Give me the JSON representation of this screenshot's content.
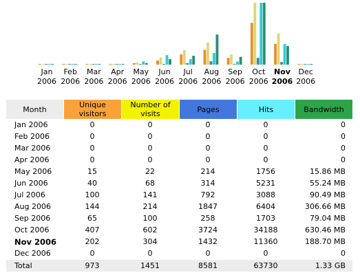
{
  "chart_data": {
    "type": "bar",
    "categories": [
      "Jan 2006",
      "Feb 2006",
      "Mar 2006",
      "Apr 2006",
      "May 2006",
      "Jun 2006",
      "Jul 2006",
      "Aug 2006",
      "Sep 2006",
      "Oct 2006",
      "Nov 2006",
      "Dec 2006"
    ],
    "x_labels": [
      {
        "month": "Jan",
        "year": "2006"
      },
      {
        "month": "Feb",
        "year": "2006"
      },
      {
        "month": "Mar",
        "year": "2006"
      },
      {
        "month": "Apr",
        "year": "2006"
      },
      {
        "month": "May",
        "year": "2006"
      },
      {
        "month": "Jun",
        "year": "2006"
      },
      {
        "month": "Jul",
        "year": "2006"
      },
      {
        "month": "Aug",
        "year": "2006"
      },
      {
        "month": "Sep",
        "year": "2006"
      },
      {
        "month": "Oct",
        "year": "2006"
      },
      {
        "month": "Nov",
        "year": "2006"
      },
      {
        "month": "Dec",
        "year": "2006"
      }
    ],
    "highlighted_category": "Nov 2006",
    "series": [
      {
        "name": "Unique visitors",
        "color": "#e8861d",
        "values": [
          0,
          0,
          0,
          0,
          15,
          40,
          100,
          144,
          65,
          407,
          202,
          0
        ]
      },
      {
        "name": "Number of visits",
        "color": "#d9d56a",
        "values": [
          0,
          0,
          0,
          0,
          22,
          68,
          141,
          214,
          100,
          602,
          304,
          0
        ]
      },
      {
        "name": "Pages",
        "color": "#2b7fa6",
        "values": [
          0,
          0,
          0,
          0,
          214,
          314,
          792,
          1847,
          258,
          3724,
          1432,
          0
        ]
      },
      {
        "name": "Hits",
        "color": "#1fc7cf",
        "values": [
          0,
          0,
          0,
          0,
          1756,
          5231,
          3088,
          6404,
          1703,
          34188,
          11360,
          0
        ]
      },
      {
        "name": "Bandwidth",
        "color": "#17856a",
        "values_mb": [
          0,
          0,
          0,
          0,
          15.86,
          55.24,
          90.49,
          306.66,
          79.04,
          630.46,
          188.7,
          0
        ]
      }
    ]
  },
  "table": {
    "headers": {
      "month": "Month",
      "unique": "Unique visitors",
      "visits": "Number of visits",
      "pages": "Pages",
      "hits": "Hits",
      "bandwidth": "Bandwidth"
    },
    "header_colors": {
      "month": "#ececec",
      "unique": "#f9a23a",
      "visits": "#f2f200",
      "pages": "#4477dd",
      "hits": "#66f0ff",
      "bandwidth": "#2ea44a"
    },
    "rows": [
      {
        "month": "Jan 2006",
        "unique": "0",
        "visits": "0",
        "pages": "0",
        "hits": "0",
        "bandwidth": "0"
      },
      {
        "month": "Feb 2006",
        "unique": "0",
        "visits": "0",
        "pages": "0",
        "hits": "0",
        "bandwidth": "0"
      },
      {
        "month": "Mar 2006",
        "unique": "0",
        "visits": "0",
        "pages": "0",
        "hits": "0",
        "bandwidth": "0"
      },
      {
        "month": "Apr 2006",
        "unique": "0",
        "visits": "0",
        "pages": "0",
        "hits": "0",
        "bandwidth": "0"
      },
      {
        "month": "May 2006",
        "unique": "15",
        "visits": "22",
        "pages": "214",
        "hits": "1756",
        "bandwidth": "15.86 MB"
      },
      {
        "month": "Jun 2006",
        "unique": "40",
        "visits": "68",
        "pages": "314",
        "hits": "5231",
        "bandwidth": "55.24 MB"
      },
      {
        "month": "Jul 2006",
        "unique": "100",
        "visits": "141",
        "pages": "792",
        "hits": "3088",
        "bandwidth": "90.49 MB"
      },
      {
        "month": "Aug 2006",
        "unique": "144",
        "visits": "214",
        "pages": "1847",
        "hits": "6404",
        "bandwidth": "306.66 MB"
      },
      {
        "month": "Sep 2006",
        "unique": "65",
        "visits": "100",
        "pages": "258",
        "hits": "1703",
        "bandwidth": "79.04 MB"
      },
      {
        "month": "Oct 2006",
        "unique": "407",
        "visits": "602",
        "pages": "3724",
        "hits": "34188",
        "bandwidth": "630.46 MB"
      },
      {
        "month": "Nov 2006",
        "unique": "202",
        "visits": "304",
        "pages": "1432",
        "hits": "11360",
        "bandwidth": "188.70 MB",
        "current": true
      },
      {
        "month": "Dec 2006",
        "unique": "0",
        "visits": "0",
        "pages": "0",
        "hits": "0",
        "bandwidth": "0"
      }
    ],
    "total": {
      "month": "Total",
      "unique": "973",
      "visits": "1451",
      "pages": "8581",
      "hits": "63730",
      "bandwidth": "1.33 GB"
    }
  }
}
